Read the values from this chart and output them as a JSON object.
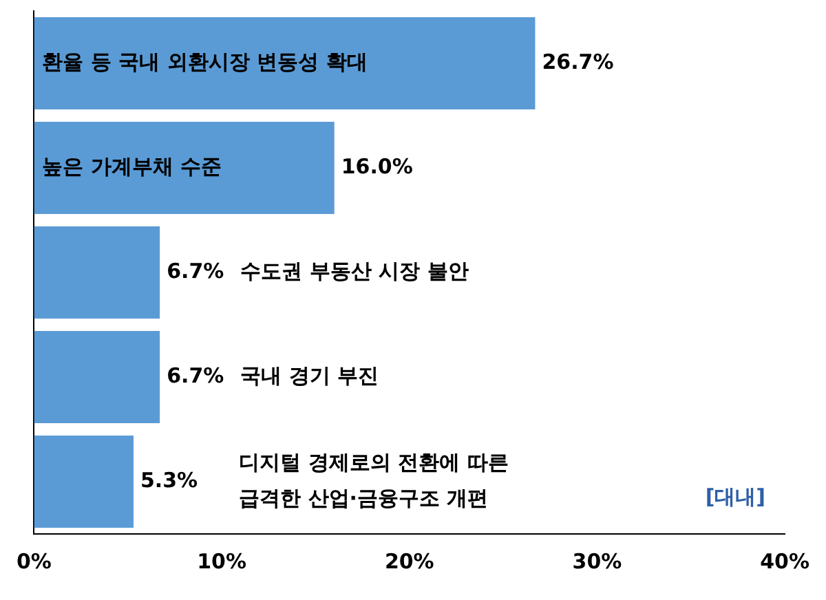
{
  "chart_data": {
    "type": "bar",
    "orientation": "horizontal",
    "categories": [
      "환율 등 국내 외환시장 변동성 확대",
      "높은 가계부채 수준",
      "수도권 부동산 시장 불안",
      "국내 경기 부진",
      "디지털 경제로의 전환에 따른\n급격한 산업·금융구조 개편"
    ],
    "values": [
      26.7,
      16.0,
      6.7,
      6.7,
      5.3
    ],
    "value_labels": [
      "26.7%",
      "16.0%",
      "6.7%",
      "6.7%",
      "5.3%"
    ],
    "color": "#5b9bd5",
    "xlim": [
      0,
      40
    ],
    "xticks": [
      {
        "value": 0,
        "label": "0%"
      },
      {
        "value": 10,
        "label": "10%"
      },
      {
        "value": 20,
        "label": "20%"
      },
      {
        "value": 30,
        "label": "30%"
      },
      {
        "value": 40,
        "label": "40%"
      }
    ],
    "grid": false,
    "legend": false,
    "annotations": [
      "[대내]"
    ]
  }
}
